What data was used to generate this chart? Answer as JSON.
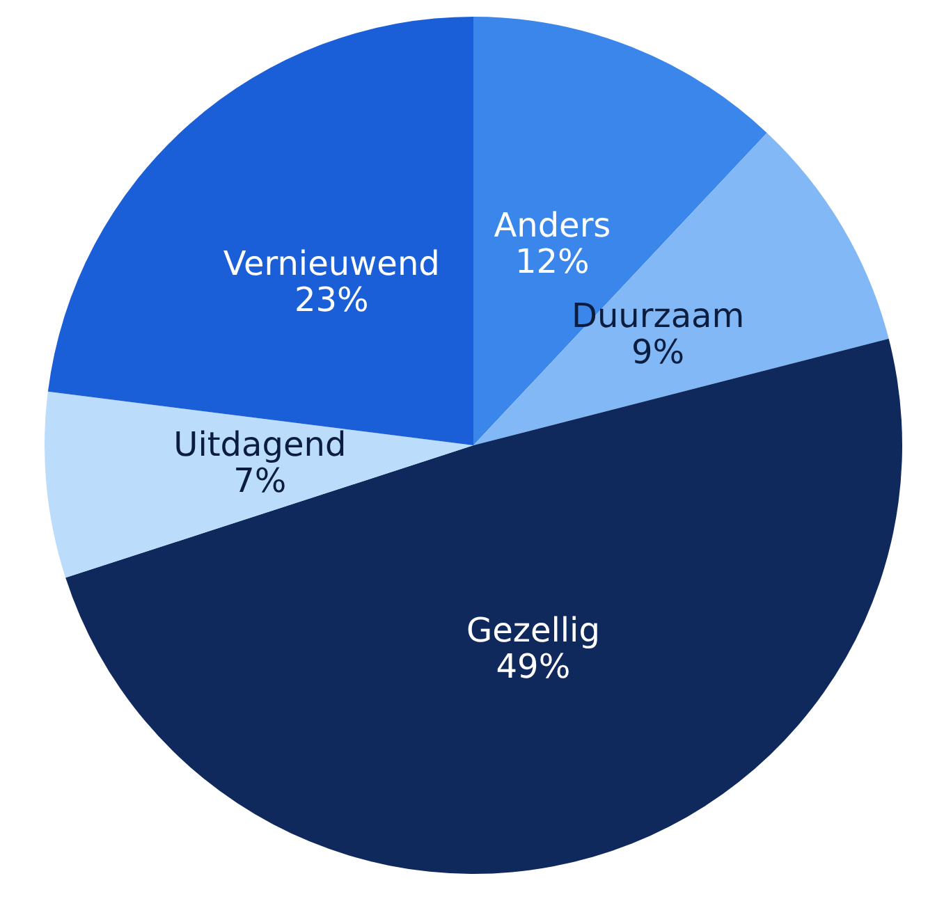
{
  "chart_data": {
    "type": "pie",
    "categories": [
      "Anders",
      "Duurzaam",
      "Gezellig",
      "Uitdagend",
      "Vernieuwend"
    ],
    "values": [
      12,
      9,
      49,
      7,
      23
    ],
    "value_labels": [
      "12%",
      "9%",
      "49%",
      "7%",
      "23%"
    ],
    "colors": [
      "#3b86ea",
      "#82b8f5",
      "#10295c",
      "#bcdcfb",
      "#1b5fd8"
    ]
  }
}
